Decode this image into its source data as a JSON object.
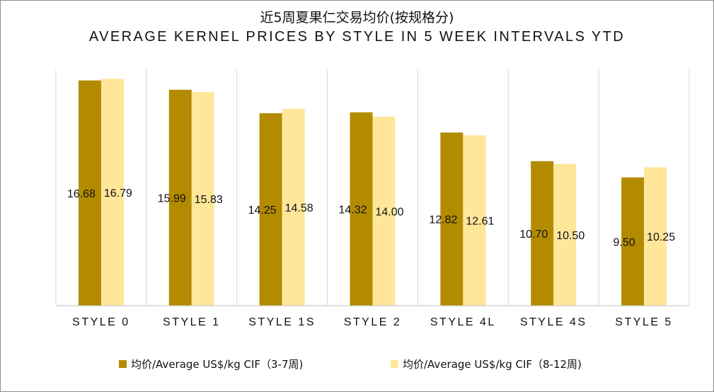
{
  "title_cn": "近5周夏果仁交易均价(按规格分)",
  "title_en": "AVERAGE KERNEL PRICES BY STYLE IN 5 WEEK INTERVALS YTD",
  "chart_data": {
    "type": "bar",
    "categories": [
      "STYLE 0",
      "STYLE 1",
      "STYLE 1S",
      "STYLE 2",
      "STYLE 4L",
      "STYLE 4S",
      "STYLE 5"
    ],
    "series": [
      {
        "name": "均价/Average US$/kg CIF（3-7周)",
        "values": [
          16.68,
          15.99,
          14.25,
          14.32,
          12.82,
          10.7,
          9.5
        ],
        "color": "#b38b00",
        "labels": [
          "16.68",
          "15.99",
          "14.25",
          "14.32",
          "12.82",
          "10.70",
          "9.50"
        ]
      },
      {
        "name": "均价/Average US$/kg CIF（8-12周)",
        "values": [
          16.79,
          15.83,
          14.58,
          14.0,
          12.61,
          10.5,
          10.25
        ],
        "color": "#ffe699",
        "labels": [
          "16.79",
          "15.83",
          "14.58",
          "14.00",
          "12.61",
          "10.50",
          "10.25"
        ]
      }
    ],
    "ylim": [
      0,
      17.5
    ],
    "grid": "vertical category separators",
    "legend": "bottom"
  }
}
